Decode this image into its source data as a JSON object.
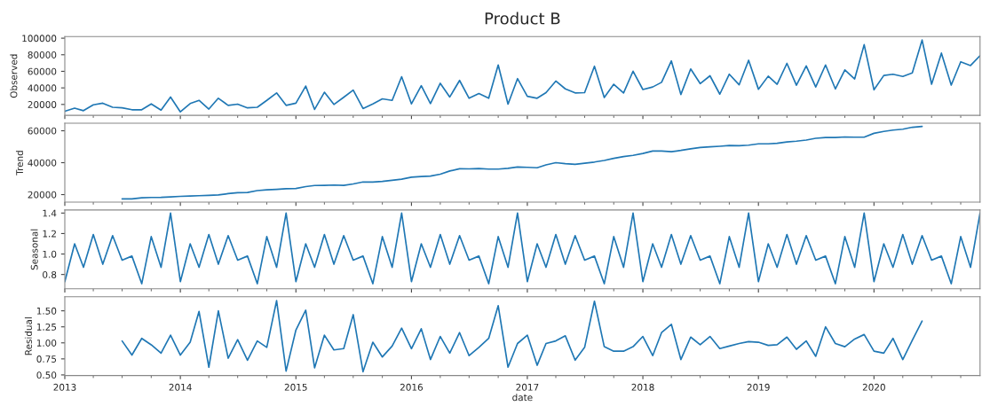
{
  "chart_data": [
    {
      "type": "line",
      "title": "Product B",
      "ylabel": "Observed",
      "tick_labels": "y",
      "grid": false,
      "legend": false,
      "x": [
        "2013-01",
        "2013-02",
        "2013-03",
        "2013-04",
        "2013-05",
        "2013-06",
        "2013-07",
        "2013-08",
        "2013-09",
        "2013-10",
        "2013-11",
        "2013-12",
        "2014-01",
        "2014-02",
        "2014-03",
        "2014-04",
        "2014-05",
        "2014-06",
        "2014-07",
        "2014-08",
        "2014-09",
        "2014-10",
        "2014-11",
        "2014-12",
        "2015-01",
        "2015-02",
        "2015-03",
        "2015-04",
        "2015-05",
        "2015-06",
        "2015-07",
        "2015-08",
        "2015-09",
        "2015-10",
        "2015-11",
        "2015-12",
        "2016-01",
        "2016-02",
        "2016-03",
        "2016-04",
        "2016-05",
        "2016-06",
        "2016-07",
        "2016-08",
        "2016-09",
        "2016-10",
        "2016-11",
        "2016-12",
        "2017-01",
        "2017-02",
        "2017-03",
        "2017-04",
        "2017-05",
        "2017-06",
        "2017-07",
        "2017-08",
        "2017-09",
        "2017-10",
        "2017-11",
        "2017-12",
        "2018-01",
        "2018-02",
        "2018-03",
        "2018-04",
        "2018-05",
        "2018-06",
        "2018-07",
        "2018-08",
        "2018-09",
        "2018-10",
        "2018-11",
        "2018-12",
        "2019-01",
        "2019-02",
        "2019-03",
        "2019-04",
        "2019-05",
        "2019-06",
        "2019-07",
        "2019-08",
        "2019-09",
        "2019-10",
        "2019-11",
        "2019-12",
        "2020-01",
        "2020-02",
        "2020-03",
        "2020-04",
        "2020-05",
        "2020-06",
        "2020-07",
        "2020-08",
        "2020-09",
        "2020-10",
        "2020-11",
        "2020-12"
      ],
      "series": [
        {
          "color": "#1f77b4",
          "values": [
            11700,
            15500,
            12500,
            19600,
            21500,
            16600,
            15900,
            13600,
            13600,
            20700,
            13200,
            29000,
            11000,
            21100,
            24900,
            14400,
            27500,
            18900,
            20400,
            15900,
            16600,
            24900,
            33900,
            18900,
            21500,
            42200,
            14000,
            34700,
            20000,
            28600,
            37300,
            15100,
            20700,
            26800,
            24900,
            53500,
            20700,
            42600,
            21100,
            45600,
            29000,
            49000,
            27500,
            33200,
            27500,
            67700,
            20400,
            51200,
            29800,
            27500,
            34300,
            48200,
            38800,
            33900,
            34300,
            66200,
            28300,
            44400,
            33900,
            60200,
            38000,
            41100,
            46700,
            72600,
            32000,
            62900,
            45200,
            54600,
            32400,
            56500,
            43700,
            73400,
            38400,
            54200,
            44400,
            69600,
            43300,
            66600,
            41100,
            67700,
            38800,
            61700,
            50800,
            92200,
            37700,
            55000,
            56500,
            53800,
            58000,
            97800,
            44400,
            82000,
            43300,
            71500,
            67000,
            79000
          ]
        }
      ],
      "xlim": [
        "2013-01",
        "2020-12"
      ],
      "xticks": [
        "2013",
        "2014",
        "2015",
        "2016",
        "2017",
        "2018",
        "2019",
        "2020"
      ],
      "ylim": [
        6800,
        102000
      ],
      "yticks": [
        20000,
        40000,
        60000,
        80000,
        100000
      ]
    },
    {
      "type": "line",
      "ylabel": "Trend",
      "tick_labels": "y",
      "grid": false,
      "legend": false,
      "x": [
        "2013-07",
        "2013-08",
        "2013-09",
        "2013-10",
        "2013-11",
        "2013-12",
        "2014-01",
        "2014-02",
        "2014-03",
        "2014-04",
        "2014-05",
        "2014-06",
        "2014-07",
        "2014-08",
        "2014-09",
        "2014-10",
        "2014-11",
        "2014-12",
        "2015-01",
        "2015-02",
        "2015-03",
        "2015-04",
        "2015-05",
        "2015-06",
        "2015-07",
        "2015-08",
        "2015-09",
        "2015-10",
        "2015-11",
        "2015-12",
        "2016-01",
        "2016-02",
        "2016-03",
        "2016-04",
        "2016-05",
        "2016-06",
        "2016-07",
        "2016-08",
        "2016-09",
        "2016-10",
        "2016-11",
        "2016-12",
        "2017-01",
        "2017-02",
        "2017-03",
        "2017-04",
        "2017-05",
        "2017-06",
        "2017-07",
        "2017-08",
        "2017-09",
        "2017-10",
        "2017-11",
        "2017-12",
        "2018-01",
        "2018-02",
        "2018-03",
        "2018-04",
        "2018-05",
        "2018-06",
        "2018-07",
        "2018-08",
        "2018-09",
        "2018-10",
        "2018-11",
        "2018-12",
        "2019-01",
        "2019-02",
        "2019-03",
        "2019-04",
        "2019-05",
        "2019-06",
        "2019-07",
        "2019-08",
        "2019-09",
        "2019-10",
        "2019-11",
        "2019-12",
        "2020-01",
        "2020-02",
        "2020-03",
        "2020-04",
        "2020-05",
        "2020-06"
      ],
      "series": [
        {
          "color": "#1f77b4",
          "values": [
            17300,
            17300,
            18000,
            18200,
            18300,
            18600,
            18900,
            19100,
            19300,
            19500,
            19800,
            20600,
            21200,
            21300,
            22500,
            23000,
            23300,
            23700,
            23800,
            25000,
            25700,
            25800,
            26000,
            25800,
            26700,
            27900,
            27900,
            28300,
            29000,
            29700,
            30900,
            31300,
            31600,
            32800,
            34800,
            36200,
            36100,
            36300,
            36000,
            36000,
            36500,
            37300,
            37100,
            36800,
            38600,
            40000,
            39400,
            39000,
            39700,
            40400,
            41400,
            42700,
            43800,
            44600,
            45800,
            47300,
            47300,
            46900,
            47700,
            48700,
            49500,
            49900,
            50300,
            50800,
            50600,
            51000,
            51800,
            51800,
            52200,
            53000,
            53500,
            54200,
            55300,
            55800,
            55800,
            56100,
            56000,
            56000,
            58400,
            59600,
            60400,
            61000,
            62200,
            62700
          ]
        }
      ],
      "xlim": [
        "2013-01",
        "2020-12"
      ],
      "xticks": [
        "2013",
        "2014",
        "2015",
        "2016",
        "2017",
        "2018",
        "2019",
        "2020"
      ],
      "ylim": [
        15300,
        64700
      ],
      "yticks": [
        20000,
        40000,
        60000
      ]
    },
    {
      "type": "line",
      "ylabel": "Seasonal",
      "tick_labels": "y",
      "grid": false,
      "legend": false,
      "x": [
        "2013-01",
        "2013-02",
        "2013-03",
        "2013-04",
        "2013-05",
        "2013-06",
        "2013-07",
        "2013-08",
        "2013-09",
        "2013-10",
        "2013-11",
        "2013-12",
        "2014-01",
        "2014-02",
        "2014-03",
        "2014-04",
        "2014-05",
        "2014-06",
        "2014-07",
        "2014-08",
        "2014-09",
        "2014-10",
        "2014-11",
        "2014-12",
        "2015-01",
        "2015-02",
        "2015-03",
        "2015-04",
        "2015-05",
        "2015-06",
        "2015-07",
        "2015-08",
        "2015-09",
        "2015-10",
        "2015-11",
        "2015-12",
        "2016-01",
        "2016-02",
        "2016-03",
        "2016-04",
        "2016-05",
        "2016-06",
        "2016-07",
        "2016-08",
        "2016-09",
        "2016-10",
        "2016-11",
        "2016-12",
        "2017-01",
        "2017-02",
        "2017-03",
        "2017-04",
        "2017-05",
        "2017-06",
        "2017-07",
        "2017-08",
        "2017-09",
        "2017-10",
        "2017-11",
        "2017-12",
        "2018-01",
        "2018-02",
        "2018-03",
        "2018-04",
        "2018-05",
        "2018-06",
        "2018-07",
        "2018-08",
        "2018-09",
        "2018-10",
        "2018-11",
        "2018-12",
        "2019-01",
        "2019-02",
        "2019-03",
        "2019-04",
        "2019-05",
        "2019-06",
        "2019-07",
        "2019-08",
        "2019-09",
        "2019-10",
        "2019-11",
        "2019-12",
        "2020-01",
        "2020-02",
        "2020-03",
        "2020-04",
        "2020-05",
        "2020-06",
        "2020-07",
        "2020-08",
        "2020-09",
        "2020-10",
        "2020-11",
        "2020-12"
      ],
      "series": [
        {
          "color": "#1f77b4",
          "values": [
            0.73,
            1.1,
            0.87,
            1.19,
            0.9,
            1.18,
            0.94,
            0.98,
            0.71,
            1.17,
            0.87,
            1.4,
            0.73,
            1.1,
            0.87,
            1.19,
            0.9,
            1.18,
            0.94,
            0.98,
            0.71,
            1.17,
            0.87,
            1.4,
            0.73,
            1.1,
            0.87,
            1.19,
            0.9,
            1.18,
            0.94,
            0.98,
            0.71,
            1.17,
            0.87,
            1.4,
            0.73,
            1.1,
            0.87,
            1.19,
            0.9,
            1.18,
            0.94,
            0.98,
            0.71,
            1.17,
            0.87,
            1.4,
            0.73,
            1.1,
            0.87,
            1.19,
            0.9,
            1.18,
            0.94,
            0.98,
            0.71,
            1.17,
            0.87,
            1.4,
            0.73,
            1.1,
            0.87,
            1.19,
            0.9,
            1.18,
            0.94,
            0.98,
            0.71,
            1.17,
            0.87,
            1.4,
            0.73,
            1.1,
            0.87,
            1.19,
            0.9,
            1.18,
            0.94,
            0.98,
            0.71,
            1.17,
            0.87,
            1.4,
            0.73,
            1.1,
            0.87,
            1.19,
            0.9,
            1.18,
            0.94,
            0.98,
            0.71,
            1.17,
            0.87,
            1.4
          ]
        }
      ],
      "xlim": [
        "2013-01",
        "2020-12"
      ],
      "xticks": [
        "2013",
        "2014",
        "2015",
        "2016",
        "2017",
        "2018",
        "2019",
        "2020"
      ],
      "ylim": [
        0.66,
        1.43
      ],
      "yticks": [
        {
          "value": 0.8,
          "label": "0.8"
        },
        {
          "value": 1,
          "label": "1.0"
        },
        {
          "value": 1.2,
          "label": "1.2"
        },
        {
          "value": 1.4,
          "label": "1.4"
        }
      ]
    },
    {
      "type": "line",
      "ylabel": "Residual",
      "xlabel": "date",
      "grid": false,
      "legend": false,
      "x": [
        "2013-07",
        "2013-08",
        "2013-09",
        "2013-10",
        "2013-11",
        "2013-12",
        "2014-01",
        "2014-02",
        "2014-03",
        "2014-04",
        "2014-05",
        "2014-06",
        "2014-07",
        "2014-08",
        "2014-09",
        "2014-10",
        "2014-11",
        "2014-12",
        "2015-01",
        "2015-02",
        "2015-03",
        "2015-04",
        "2015-05",
        "2015-06",
        "2015-07",
        "2015-08",
        "2015-09",
        "2015-10",
        "2015-11",
        "2015-12",
        "2016-01",
        "2016-02",
        "2016-03",
        "2016-04",
        "2016-05",
        "2016-06",
        "2016-07",
        "2016-08",
        "2016-09",
        "2016-10",
        "2016-11",
        "2016-12",
        "2017-01",
        "2017-02",
        "2017-03",
        "2017-04",
        "2017-05",
        "2017-06",
        "2017-07",
        "2017-08",
        "2017-09",
        "2017-10",
        "2017-11",
        "2017-12",
        "2018-01",
        "2018-02",
        "2018-03",
        "2018-04",
        "2018-05",
        "2018-06",
        "2018-07",
        "2018-08",
        "2018-09",
        "2018-10",
        "2018-11",
        "2018-12",
        "2019-01",
        "2019-02",
        "2019-03",
        "2019-04",
        "2019-05",
        "2019-06",
        "2019-07",
        "2019-08",
        "2019-09",
        "2019-10",
        "2019-11",
        "2019-12",
        "2020-01",
        "2020-02",
        "2020-03",
        "2020-04",
        "2020-05",
        "2020-06"
      ],
      "series": [
        {
          "color": "#1f77b4",
          "values": [
            1.03,
            0.81,
            1.07,
            0.97,
            0.84,
            1.12,
            0.81,
            1.01,
            1.49,
            0.62,
            1.5,
            0.76,
            1.05,
            0.73,
            1.03,
            0.93,
            1.66,
            0.56,
            1.2,
            1.51,
            0.61,
            1.12,
            0.89,
            0.91,
            1.44,
            0.55,
            1.01,
            0.78,
            0.95,
            1.23,
            0.91,
            1.22,
            0.74,
            1.1,
            0.84,
            1.16,
            0.8,
            0.93,
            1.07,
            1.58,
            0.62,
            0.99,
            1.12,
            0.65,
            0.99,
            1.03,
            1.11,
            0.73,
            0.93,
            1.65,
            0.94,
            0.87,
            0.87,
            0.94,
            1.1,
            0.8,
            1.16,
            1.29,
            0.74,
            1.09,
            0.97,
            1.1,
            0.91,
            0.95,
            0.99,
            1.02,
            1.01,
            0.96,
            0.97,
            1.09,
            0.9,
            1.03,
            0.79,
            1.25,
            0.99,
            0.94,
            1.06,
            1.13,
            0.87,
            0.84,
            1.07,
            0.74,
            1.04,
            1.34
          ]
        }
      ],
      "xlim": [
        "2013-01",
        "2020-12"
      ],
      "xticks": [
        "2013",
        "2014",
        "2015",
        "2016",
        "2017",
        "2018",
        "2019",
        "2020"
      ],
      "ylim": [
        0.49,
        1.72
      ],
      "yticks": [
        {
          "value": 0.5,
          "label": "0.50"
        },
        {
          "value": 0.75,
          "label": "0.75"
        },
        {
          "value": 1,
          "label": "1.00"
        },
        {
          "value": 1.25,
          "label": "1.25"
        },
        {
          "value": 1.5,
          "label": "1.50"
        }
      ]
    }
  ]
}
